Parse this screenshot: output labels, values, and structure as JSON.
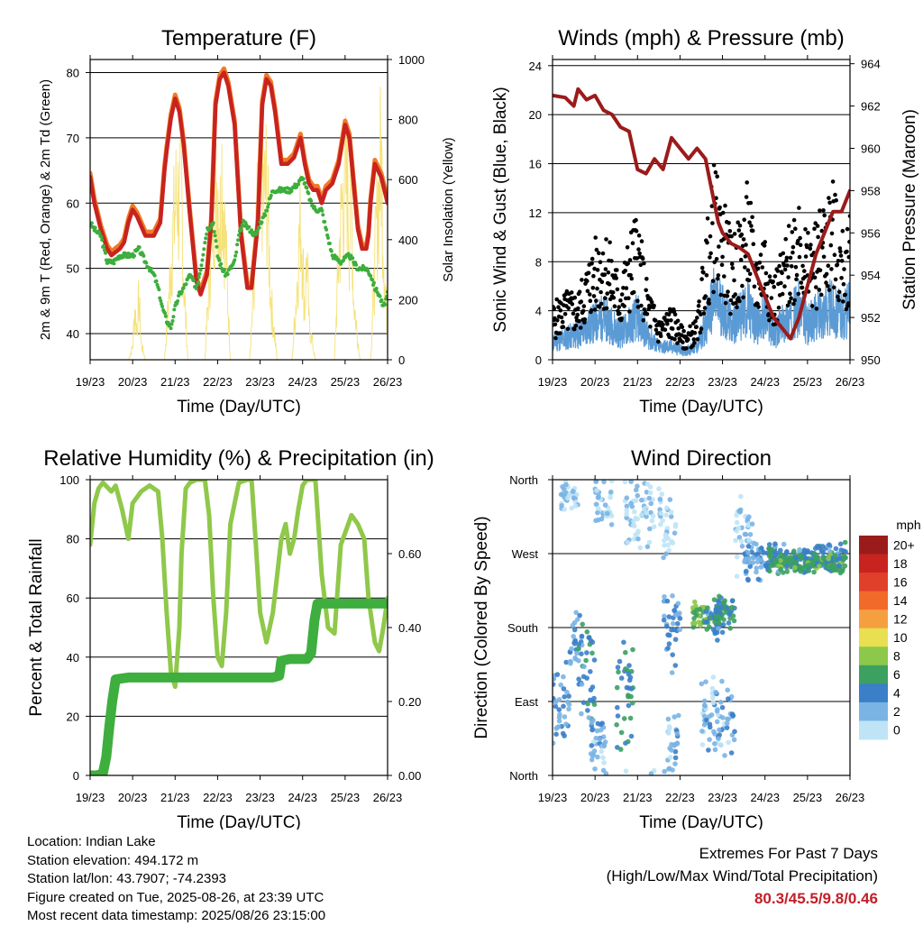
{
  "colors": {
    "temp2m": "#c8231e",
    "temp9m": "#f07a28",
    "dewpoint": "#3cae3c",
    "solar": "#f5e27a",
    "gust": "#000000",
    "wind": "#5b9bd5",
    "pressure": "#9b1b1b",
    "rh": "#8fc84a",
    "precip": "#3eae3e",
    "extremes": "#c0202a"
  },
  "chart_data": [
    {
      "type": "line",
      "title": "Temperature (F)",
      "xlabel": "Time (Day/UTC)",
      "ylabel": "2m & 9m T (Red, Orange) & 2m Td (Green)",
      "ylabel_right": "Solar Insolation (Yellow)",
      "x_ticks": [
        "19/23",
        "20/23",
        "21/23",
        "22/23",
        "23/23",
        "24/23",
        "25/23",
        "26/23"
      ],
      "xlim": [
        0,
        7
      ],
      "ylim": [
        36,
        82
      ],
      "y_ticks": [
        40,
        50,
        60,
        70,
        80
      ],
      "ylim_right": [
        0,
        1000
      ],
      "y_ticks_right": [
        0,
        200,
        400,
        600,
        800,
        1000
      ],
      "grid": true,
      "series": [
        {
          "key": "t2m",
          "x": [
            0,
            0.1,
            0.25,
            0.4,
            0.5,
            0.7,
            0.8,
            0.9,
            1.0,
            1.1,
            1.3,
            1.5,
            1.65,
            1.75,
            1.8,
            1.9,
            2.0,
            2.1,
            2.2,
            2.35,
            2.5,
            2.6,
            2.75,
            2.85,
            2.95,
            3.05,
            3.15,
            3.25,
            3.4,
            3.55,
            3.7,
            3.8,
            3.95,
            4.05,
            4.15,
            4.25,
            4.35,
            4.5,
            4.65,
            4.8,
            4.95,
            5.05,
            5.15,
            5.25,
            5.35,
            5.45,
            5.55,
            5.7,
            5.85,
            6.0,
            6.1,
            6.2,
            6.3,
            6.4,
            6.5,
            6.55,
            6.6,
            6.7,
            6.85,
            7.0
          ],
          "y": [
            64,
            60,
            56,
            53,
            52,
            53,
            54,
            57,
            59,
            58,
            55,
            55,
            57,
            65,
            68,
            73,
            76,
            74,
            69,
            58,
            48,
            46,
            49,
            57,
            75,
            79,
            80,
            78,
            72,
            55,
            47,
            47,
            57,
            75,
            79,
            78,
            74,
            66,
            66,
            67,
            70,
            66,
            63,
            62,
            62,
            60,
            62,
            63,
            66,
            72,
            70,
            63,
            56,
            53,
            53,
            55,
            60,
            66,
            64,
            60
          ]
        },
        {
          "key": "td2m",
          "x": [
            0,
            0.1,
            0.25,
            0.4,
            0.55,
            0.7,
            0.8,
            0.9,
            1.0,
            1.15,
            1.3,
            1.5,
            1.6,
            1.7,
            1.8,
            1.9,
            2.0,
            2.1,
            2.2,
            2.35,
            2.5,
            2.6,
            2.75,
            2.9,
            3.0,
            3.1,
            3.2,
            3.4,
            3.5,
            3.6,
            3.75,
            3.9,
            4.0,
            4.1,
            4.3,
            4.5,
            4.7,
            4.9,
            5.0,
            5.1,
            5.2,
            5.3,
            5.45,
            5.55,
            5.7,
            5.9,
            6.1,
            6.3,
            6.4,
            6.5,
            6.6,
            6.7,
            6.8,
            6.9,
            7.0
          ],
          "y": [
            57,
            56,
            55,
            51,
            51,
            52,
            52,
            52,
            52,
            53,
            51,
            49,
            47,
            44,
            42,
            41,
            44,
            46,
            47,
            49,
            47,
            50,
            56,
            57,
            52,
            50,
            49,
            51,
            55,
            57,
            56,
            55,
            57,
            58,
            62,
            62,
            62,
            63,
            64,
            62,
            60,
            59,
            59,
            56,
            52,
            51,
            52,
            50,
            50,
            50,
            49,
            47,
            46,
            44,
            46
          ]
        },
        {
          "key": "solar",
          "x": [
            0,
            0.9,
            1.0,
            1.05,
            1.1,
            1.15,
            1.2,
            1.3,
            1.75,
            1.85,
            1.95,
            2.05,
            2.1,
            2.15,
            2.2,
            2.3,
            2.7,
            2.8,
            2.9,
            3.0,
            3.05,
            3.1,
            3.15,
            3.2,
            3.3,
            3.75,
            3.85,
            3.95,
            4.05,
            4.1,
            4.15,
            4.2,
            4.25,
            4.4,
            4.75,
            4.85,
            4.95,
            5.0,
            5.05,
            5.1,
            5.15,
            5.3,
            5.75,
            5.85,
            5.95,
            6.05,
            6.1,
            6.15,
            6.2,
            6.35,
            6.6,
            6.75,
            6.85,
            6.9,
            6.95,
            7.0
          ],
          "y": [
            0,
            0,
            60,
            250,
            150,
            300,
            80,
            0,
            0,
            300,
            620,
            850,
            700,
            820,
            400,
            0,
            0,
            380,
            800,
            900,
            650,
            950,
            700,
            500,
            0,
            0,
            350,
            750,
            900,
            800,
            860,
            600,
            300,
            0,
            0,
            300,
            700,
            500,
            250,
            520,
            180,
            0,
            0,
            500,
            820,
            880,
            600,
            820,
            300,
            0,
            0,
            700,
            1000,
            600,
            320,
            150
          ]
        }
      ]
    },
    {
      "type": "scatter",
      "title": "Winds (mph) & Pressure (mb)",
      "xlabel": "Time (Day/UTC)",
      "ylabel": "Sonic Wind & Gust (Blue, Black)",
      "ylabel_right": "Station Pressure (Maroon)",
      "x_ticks": [
        "19/23",
        "20/23",
        "21/23",
        "22/23",
        "23/23",
        "24/23",
        "25/23",
        "26/23"
      ],
      "xlim": [
        0,
        7
      ],
      "ylim": [
        0,
        24.5
      ],
      "y_ticks": [
        0,
        4,
        8,
        12,
        16,
        20,
        24
      ],
      "ylim_right": [
        950,
        964.2
      ],
      "y_ticks_right": [
        950,
        952,
        954,
        956,
        958,
        960,
        962,
        964
      ],
      "grid": true,
      "series": [
        {
          "key": "gust_env",
          "x": [
            0,
            0.3,
            0.6,
            0.9,
            1.2,
            1.6,
            1.8,
            2.0,
            2.2,
            2.5,
            2.8,
            3.1,
            3.4,
            3.6,
            3.8,
            4.0,
            4.2,
            4.4,
            4.6,
            4.8,
            5.0,
            5.2,
            5.4,
            5.6,
            5.8,
            6.0,
            6.2,
            6.4,
            6.6,
            6.8,
            7.0
          ],
          "y": [
            4,
            5,
            5,
            8,
            10,
            6,
            9,
            11,
            6,
            3,
            4,
            2,
            3,
            9,
            14,
            12,
            9,
            10,
            13,
            8,
            10,
            6,
            8,
            10,
            13,
            9,
            10,
            12,
            13,
            9,
            11
          ]
        },
        {
          "key": "wind_env",
          "x": [
            0,
            0.3,
            0.6,
            0.9,
            1.2,
            1.6,
            1.8,
            2.0,
            2.2,
            2.5,
            2.8,
            3.1,
            3.4,
            3.6,
            3.8,
            4.0,
            4.2,
            4.4,
            4.6,
            4.8,
            5.0,
            5.2,
            5.4,
            5.6,
            5.8,
            6.0,
            6.2,
            6.4,
            6.6,
            6.8,
            7.0
          ],
          "y": [
            2,
            2.5,
            3,
            4,
            5,
            3,
            4,
            5,
            3,
            1.5,
            1.5,
            1,
            1.5,
            4,
            7,
            6,
            4,
            5,
            6,
            4,
            5,
            3,
            4,
            5,
            6,
            4,
            5,
            6,
            6,
            5,
            6
          ]
        },
        {
          "key": "pressure",
          "x": [
            0,
            0.3,
            0.5,
            0.6,
            0.8,
            1.0,
            1.2,
            1.4,
            1.6,
            1.8,
            2.0,
            2.2,
            2.4,
            2.6,
            2.8,
            3.0,
            3.2,
            3.4,
            3.6,
            3.7,
            3.8,
            3.9,
            4.0,
            4.2,
            4.4,
            4.6,
            4.8,
            5.0,
            5.2,
            5.4,
            5.6,
            5.8,
            6.0,
            6.2,
            6.4,
            6.6,
            6.8,
            7.0
          ],
          "y": [
            962.5,
            962.4,
            962.0,
            962.8,
            962.3,
            962.5,
            961.8,
            961.6,
            961.0,
            960.8,
            959.0,
            958.8,
            959.5,
            959.0,
            960.5,
            960.0,
            959.5,
            960.0,
            959.5,
            958.5,
            957.5,
            956.5,
            956.0,
            955.5,
            955.3,
            955.0,
            954.0,
            953.0,
            952.0,
            951.5,
            951.0,
            952.0,
            953.5,
            955.0,
            956.0,
            957.0,
            957.0,
            958.0
          ]
        }
      ]
    },
    {
      "type": "line",
      "title": "Relative Humidity (%) & Precipitation (in)",
      "xlabel": "Time (Day/UTC)",
      "ylabel": "Percent & Total Rainfall",
      "x_ticks": [
        "19/23",
        "20/23",
        "21/23",
        "22/23",
        "23/23",
        "24/23",
        "25/23",
        "26/23"
      ],
      "xlim": [
        0,
        7
      ],
      "ylim": [
        0,
        100
      ],
      "y_ticks": [
        0,
        20,
        40,
        60,
        80,
        100
      ],
      "ylim_right": [
        0,
        0.8
      ],
      "y_ticks_right": [
        0.0,
        0.2,
        0.4,
        0.6
      ],
      "grid": true,
      "series": [
        {
          "key": "rh",
          "x": [
            0,
            0.1,
            0.2,
            0.3,
            0.5,
            0.6,
            0.75,
            0.9,
            1.0,
            1.2,
            1.4,
            1.6,
            1.7,
            1.8,
            1.9,
            2.0,
            2.1,
            2.15,
            2.25,
            2.35,
            2.5,
            2.7,
            2.8,
            2.9,
            3.0,
            3.1,
            3.2,
            3.3,
            3.5,
            3.7,
            3.8,
            3.9,
            4.0,
            4.15,
            4.3,
            4.5,
            4.6,
            4.7,
            4.8,
            4.9,
            5.0,
            5.1,
            5.2,
            5.3,
            5.45,
            5.6,
            5.75,
            5.9,
            6.0,
            6.15,
            6.3,
            6.45,
            6.55,
            6.7,
            6.8,
            6.9,
            7.0
          ],
          "y": [
            78,
            92,
            97,
            99,
            96,
            98,
            90,
            80,
            92,
            96,
            98,
            96,
            80,
            55,
            35,
            30,
            50,
            75,
            97,
            99,
            100,
            100,
            88,
            60,
            40,
            37,
            55,
            85,
            99,
            100,
            100,
            78,
            55,
            45,
            55,
            80,
            85,
            75,
            80,
            90,
            98,
            100,
            100,
            100,
            68,
            50,
            48,
            78,
            82,
            88,
            85,
            80,
            60,
            45,
            42,
            50,
            60
          ]
        },
        {
          "key": "precip",
          "x": [
            0,
            0.15,
            0.3,
            0.38,
            0.45,
            0.52,
            0.6,
            0.9,
            1.5,
            2.0,
            3.0,
            4.0,
            4.3,
            4.45,
            4.5,
            4.7,
            5.0,
            5.1,
            5.2,
            5.28,
            5.35,
            6.0,
            6.5,
            7.0
          ],
          "y": [
            0,
            0,
            0.005,
            0.05,
            0.13,
            0.2,
            0.26,
            0.265,
            0.265,
            0.265,
            0.265,
            0.265,
            0.265,
            0.27,
            0.31,
            0.315,
            0.315,
            0.315,
            0.33,
            0.42,
            0.465,
            0.465,
            0.465,
            0.465
          ]
        }
      ]
    },
    {
      "type": "scatter",
      "title": "Wind Direction",
      "xlabel": "Time (Day/UTC)",
      "ylabel": "Direction (Colored By Speed)",
      "x_ticks": [
        "19/23",
        "20/23",
        "21/23",
        "22/23",
        "23/23",
        "24/23",
        "25/23",
        "26/23"
      ],
      "xlim": [
        0,
        7
      ],
      "y_ticks": [
        "North",
        "East",
        "South",
        "West",
        "North"
      ],
      "ylim": [
        0,
        360
      ],
      "grid": true,
      "colorbar": {
        "unit": "mph",
        "labels": [
          "20+",
          "18",
          "16",
          "14",
          "12",
          "10",
          "8",
          "6",
          "4",
          "2",
          "0"
        ],
        "colors": [
          "#9b1b1b",
          "#c8231e",
          "#e0402a",
          "#f26a2a",
          "#f5a040",
          "#e8e050",
          "#8cc84a",
          "#3ca060",
          "#3a7fc8",
          "#7ab4e4",
          "#bfe4f6"
        ]
      },
      "clusters": [
        {
          "x0": 0.0,
          "x1": 0.4,
          "dir": [
            90,
            60
          ],
          "speed": 3
        },
        {
          "x0": 0.2,
          "x1": 0.6,
          "dir": [
            340,
            20
          ],
          "speed": 1
        },
        {
          "x0": 0.4,
          "x1": 0.7,
          "dir": [
            165,
            40
          ],
          "speed": 3
        },
        {
          "x0": 0.6,
          "x1": 1.0,
          "dir": [
            130,
            70
          ],
          "speed": 4
        },
        {
          "x0": 0.9,
          "x1": 1.3,
          "dir": [
            40,
            40
          ],
          "speed": 2
        },
        {
          "x0": 1.0,
          "x1": 1.4,
          "dir": [
            330,
            40
          ],
          "speed": 1
        },
        {
          "x0": 1.5,
          "x1": 1.9,
          "dir": [
            100,
            80
          ],
          "speed": 5
        },
        {
          "x0": 1.7,
          "x1": 2.4,
          "dir": [
            320,
            50
          ],
          "speed": 1
        },
        {
          "x0": 2.5,
          "x1": 2.9,
          "dir": [
            310,
            60
          ],
          "speed": 1
        },
        {
          "x0": 2.6,
          "x1": 3.0,
          "dir": [
            180,
            60
          ],
          "speed": 3
        },
        {
          "x0": 2.7,
          "x1": 3.0,
          "dir": [
            40,
            40
          ],
          "speed": 2
        },
        {
          "x0": 3.3,
          "x1": 3.7,
          "dir": [
            195,
            20
          ],
          "speed": 7
        },
        {
          "x0": 3.6,
          "x1": 4.0,
          "dir": [
            190,
            30
          ],
          "speed": 4
        },
        {
          "x0": 3.8,
          "x1": 4.3,
          "dir": [
            200,
            30
          ],
          "speed": 5
        },
        {
          "x0": 3.5,
          "x1": 4.3,
          "dir": [
            70,
            60
          ],
          "speed": 2
        },
        {
          "x0": 4.3,
          "x1": 4.7,
          "dir": [
            300,
            60
          ],
          "speed": 1
        },
        {
          "x0": 4.5,
          "x1": 5.0,
          "dir": [
            260,
            30
          ],
          "speed": 3
        },
        {
          "x0": 5.0,
          "x1": 6.9,
          "dir": [
            265,
            20
          ],
          "speed": 4
        },
        {
          "x0": 5.1,
          "x1": 6.9,
          "dir": [
            258,
            12
          ],
          "speed": 6
        }
      ]
    }
  ],
  "info": {
    "location": "Location: Indian Lake",
    "elevation": "Station elevation: 494.172 m",
    "latlon": "Station lat/lon: 43.7907; -74.2393",
    "created": "Figure created on Tue, 2025-08-26, at 23:39 UTC",
    "recent": "Most recent data timestamp: 2025/08/26 23:15:00"
  },
  "extremes": {
    "title": "Extremes For Past 7 Days",
    "subtitle": "(High/Low/Max Wind/Total Precipitation)",
    "values": "80.3/45.5/9.8/0.46"
  }
}
